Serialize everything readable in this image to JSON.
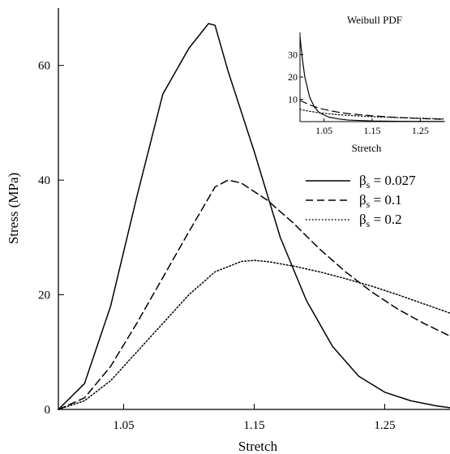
{
  "chart_data": [
    {
      "type": "line",
      "title": "",
      "xlabel": "Stretch",
      "ylabel": "Stress (MPa)",
      "xlim": [
        1.0,
        1.3
      ],
      "ylim": [
        0,
        70
      ],
      "xticks": [
        "1.05",
        "1.15",
        "1.25"
      ],
      "yticks": [
        "0",
        "20",
        "40",
        "60"
      ],
      "grid": false,
      "legend_position": "right",
      "series": [
        {
          "name": "βs = 0.027",
          "legend_beta": "β",
          "legend_sub": "s",
          "legend_rest": " = 0.027",
          "style": "solid",
          "x": [
            1.0,
            1.02,
            1.04,
            1.06,
            1.08,
            1.1,
            1.115,
            1.12,
            1.13,
            1.15,
            1.17,
            1.19,
            1.21,
            1.23,
            1.25,
            1.27,
            1.29,
            1.3
          ],
          "y": [
            0,
            4.5,
            18,
            37,
            55,
            63,
            67.3,
            67,
            59,
            45,
            30,
            19,
            11,
            5.8,
            3,
            1.5,
            0.6,
            0.3
          ]
        },
        {
          "name": "βs = 0.1",
          "legend_beta": "β",
          "legend_sub": "s",
          "legend_rest": " = 0.1",
          "style": "dashed",
          "x": [
            1.0,
            1.02,
            1.04,
            1.06,
            1.08,
            1.1,
            1.12,
            1.13,
            1.14,
            1.16,
            1.18,
            1.2,
            1.22,
            1.24,
            1.26,
            1.28,
            1.3
          ],
          "y": [
            0,
            2,
            7.5,
            15,
            23,
            31,
            38.8,
            40,
            39.5,
            36.5,
            32.5,
            28,
            24,
            20.5,
            17.5,
            15,
            12.8
          ]
        },
        {
          "name": "βs = 0.2",
          "legend_beta": "β",
          "legend_sub": "s",
          "legend_rest": " = 0.2",
          "style": "dotted",
          "x": [
            1.0,
            1.02,
            1.04,
            1.06,
            1.08,
            1.1,
            1.12,
            1.14,
            1.15,
            1.16,
            1.18,
            1.2,
            1.22,
            1.24,
            1.26,
            1.28,
            1.3
          ],
          "y": [
            0,
            1.5,
            5,
            10,
            15,
            20,
            24,
            25.8,
            26,
            25.8,
            25,
            24,
            22.8,
            21.5,
            20,
            18.4,
            16.8
          ]
        }
      ]
    },
    {
      "type": "line",
      "title": "Weibull PDF",
      "xlabel": "Stretch",
      "ylabel": "",
      "xlim": [
        1.0,
        1.3
      ],
      "ylim": [
        0,
        40
      ],
      "xticks": [
        "1.05",
        "1.15",
        "1.25"
      ],
      "yticks": [
        "10",
        "20",
        "30"
      ],
      "grid": false,
      "legend_position": "none",
      "series": [
        {
          "style": "solid",
          "x": [
            1.0,
            1.002,
            1.005,
            1.01,
            1.02,
            1.03,
            1.04,
            1.06,
            1.08,
            1.1,
            1.15,
            1.2,
            1.25,
            1.3
          ],
          "y": [
            38,
            34,
            28,
            20,
            11,
            6.5,
            4,
            2,
            1.2,
            0.7,
            0.3,
            0.15,
            0.1,
            0.05
          ]
        },
        {
          "style": "dashed",
          "x": [
            1.0,
            1.02,
            1.04,
            1.06,
            1.08,
            1.1,
            1.15,
            1.2,
            1.25,
            1.3
          ],
          "y": [
            9.5,
            7.5,
            6,
            5,
            4.2,
            3.6,
            2.6,
            1.9,
            1.4,
            1.0
          ]
        },
        {
          "style": "dotted",
          "x": [
            1.0,
            1.02,
            1.04,
            1.06,
            1.08,
            1.1,
            1.15,
            1.2,
            1.25,
            1.3
          ],
          "y": [
            5.5,
            4.6,
            4,
            3.5,
            3.1,
            2.8,
            2.2,
            1.8,
            1.5,
            1.2
          ]
        }
      ]
    }
  ]
}
